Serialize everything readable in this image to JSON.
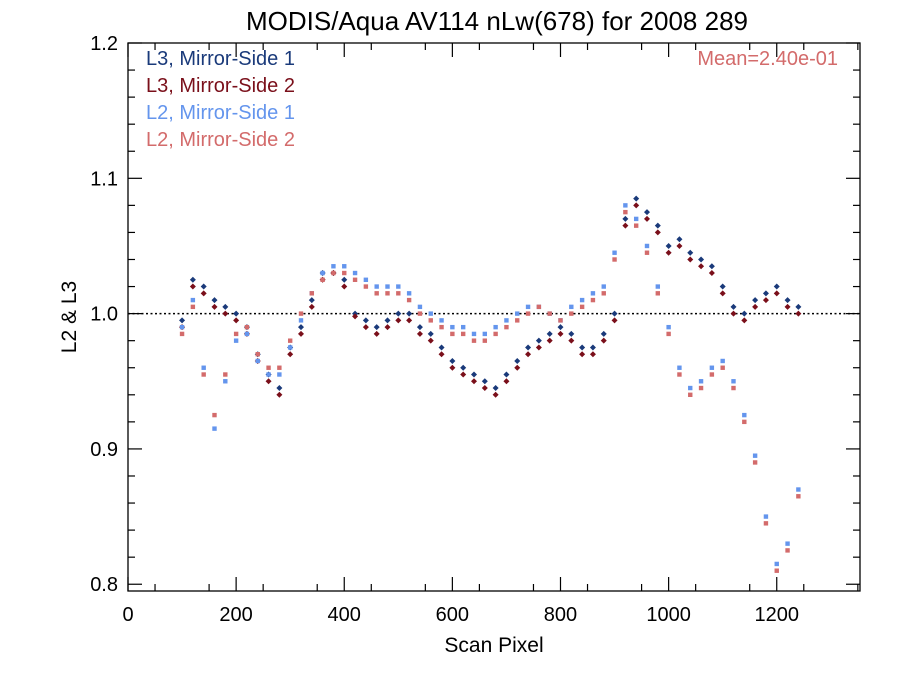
{
  "chart_data": {
    "type": "scatter",
    "title": "MODIS/Aqua AV114 nLw(678) for 2008 289",
    "xlabel": "Scan Pixel",
    "ylabel": "L2 & L3",
    "xlim": [
      0,
      1354
    ],
    "ylim": [
      0.795,
      1.2
    ],
    "x_ticks": [
      0,
      200,
      400,
      600,
      800,
      1000,
      1200
    ],
    "x_tick_labels": [
      "0",
      "200",
      "400",
      "600",
      "800",
      "1000",
      "1200"
    ],
    "y_ticks": [
      0.8,
      0.9,
      1.0,
      1.1,
      1.2
    ],
    "y_tick_labels": [
      "0.8",
      "0.9",
      "1.0",
      "1.1",
      "1.2"
    ],
    "reference_line": 1.0,
    "annotation": "Mean=2.40e-01",
    "annotation_color": "#d36b6b",
    "legend_position": "top-left",
    "series": [
      {
        "name": "L3, Mirror-Side 1",
        "color": "#1a3a7a",
        "marker": "diamond",
        "x": [
          100,
          120,
          140,
          160,
          180,
          200,
          220,
          240,
          260,
          280,
          300,
          320,
          340,
          360,
          380,
          400,
          420,
          440,
          460,
          480,
          500,
          520,
          540,
          560,
          580,
          600,
          620,
          640,
          660,
          680,
          700,
          720,
          740,
          760,
          780,
          800,
          820,
          840,
          860,
          880,
          900,
          920,
          940,
          960,
          980,
          1000,
          1020,
          1040,
          1060,
          1080,
          1100,
          1120,
          1140,
          1160,
          1180,
          1200,
          1220,
          1240
        ],
        "y": [
          0.995,
          1.025,
          1.02,
          1.01,
          1.005,
          1.0,
          0.99,
          0.97,
          0.955,
          0.945,
          0.975,
          0.99,
          1.01,
          1.03,
          1.03,
          1.025,
          1.0,
          0.995,
          0.99,
          0.995,
          1.0,
          1.0,
          0.99,
          0.985,
          0.975,
          0.965,
          0.96,
          0.955,
          0.95,
          0.945,
          0.955,
          0.965,
          0.975,
          0.98,
          0.985,
          0.99,
          0.985,
          0.975,
          0.975,
          0.985,
          1.0,
          1.07,
          1.085,
          1.075,
          1.065,
          1.05,
          1.055,
          1.045,
          1.04,
          1.035,
          1.02,
          1.005,
          1.0,
          1.01,
          1.015,
          1.02,
          1.01,
          1.005
        ]
      },
      {
        "name": "L3, Mirror-Side 2",
        "color": "#7a0f1a",
        "marker": "diamond",
        "x": [
          100,
          120,
          140,
          160,
          180,
          200,
          220,
          240,
          260,
          280,
          300,
          320,
          340,
          360,
          380,
          400,
          420,
          440,
          460,
          480,
          500,
          520,
          540,
          560,
          580,
          600,
          620,
          640,
          660,
          680,
          700,
          720,
          740,
          760,
          780,
          800,
          820,
          840,
          860,
          880,
          900,
          920,
          940,
          960,
          980,
          1000,
          1020,
          1040,
          1060,
          1080,
          1100,
          1120,
          1140,
          1160,
          1180,
          1200,
          1220,
          1240
        ],
        "y": [
          0.99,
          1.02,
          1.015,
          1.005,
          1.0,
          0.995,
          0.985,
          0.965,
          0.95,
          0.94,
          0.97,
          0.985,
          1.005,
          1.025,
          1.03,
          1.02,
          0.998,
          0.99,
          0.985,
          0.99,
          0.995,
          0.995,
          0.985,
          0.98,
          0.97,
          0.96,
          0.955,
          0.95,
          0.945,
          0.94,
          0.95,
          0.96,
          0.97,
          0.975,
          0.98,
          0.985,
          0.98,
          0.97,
          0.97,
          0.98,
          0.995,
          1.065,
          1.08,
          1.07,
          1.06,
          1.045,
          1.05,
          1.04,
          1.035,
          1.03,
          1.015,
          1.0,
          0.995,
          1.005,
          1.01,
          1.015,
          1.005,
          1.0
        ]
      },
      {
        "name": "L2, Mirror-Side 1",
        "color": "#6495ed",
        "marker": "square",
        "x": [
          100,
          120,
          140,
          160,
          180,
          200,
          220,
          240,
          260,
          280,
          300,
          320,
          340,
          360,
          380,
          400,
          420,
          440,
          460,
          480,
          500,
          520,
          540,
          560,
          580,
          600,
          620,
          640,
          660,
          680,
          700,
          720,
          740,
          760,
          780,
          800,
          820,
          840,
          860,
          880,
          900,
          920,
          940,
          960,
          980,
          1000,
          1020,
          1040,
          1060,
          1080,
          1100,
          1120,
          1140,
          1160,
          1180,
          1200,
          1220,
          1240
        ],
        "y": [
          0.99,
          1.01,
          0.96,
          0.915,
          0.95,
          0.98,
          0.985,
          0.965,
          0.955,
          0.955,
          0.975,
          0.995,
          1.015,
          1.03,
          1.035,
          1.035,
          1.03,
          1.025,
          1.02,
          1.02,
          1.02,
          1.015,
          1.005,
          1.0,
          0.995,
          0.99,
          0.99,
          0.985,
          0.985,
          0.99,
          0.995,
          1.0,
          1.005,
          1.005,
          1.0,
          0.995,
          1.005,
          1.01,
          1.015,
          1.02,
          1.045,
          1.08,
          1.07,
          1.05,
          1.02,
          0.99,
          0.96,
          0.945,
          0.95,
          0.96,
          0.965,
          0.95,
          0.925,
          0.895,
          0.85,
          0.815,
          0.83,
          0.87
        ]
      },
      {
        "name": "L2, Mirror-Side 2",
        "color": "#d36b6b",
        "marker": "square",
        "x": [
          100,
          120,
          140,
          160,
          180,
          200,
          220,
          240,
          260,
          280,
          300,
          320,
          340,
          360,
          380,
          400,
          420,
          440,
          460,
          480,
          500,
          520,
          540,
          560,
          580,
          600,
          620,
          640,
          660,
          680,
          700,
          720,
          740,
          760,
          780,
          800,
          820,
          840,
          860,
          880,
          900,
          920,
          940,
          960,
          980,
          1000,
          1020,
          1040,
          1060,
          1080,
          1100,
          1120,
          1140,
          1160,
          1180,
          1200,
          1220,
          1240
        ],
        "y": [
          0.985,
          1.005,
          0.955,
          0.925,
          0.955,
          0.985,
          0.99,
          0.97,
          0.96,
          0.96,
          0.98,
          1.0,
          1.015,
          1.025,
          1.03,
          1.03,
          1.025,
          1.02,
          1.015,
          1.015,
          1.015,
          1.01,
          1.0,
          0.995,
          0.99,
          0.985,
          0.985,
          0.98,
          0.98,
          0.985,
          0.99,
          0.995,
          1.0,
          1.005,
          1.0,
          0.995,
          1.0,
          1.005,
          1.01,
          1.015,
          1.04,
          1.075,
          1.065,
          1.045,
          1.015,
          0.985,
          0.955,
          0.94,
          0.945,
          0.955,
          0.96,
          0.945,
          0.92,
          0.89,
          0.845,
          0.81,
          0.825,
          0.865
        ]
      }
    ]
  }
}
